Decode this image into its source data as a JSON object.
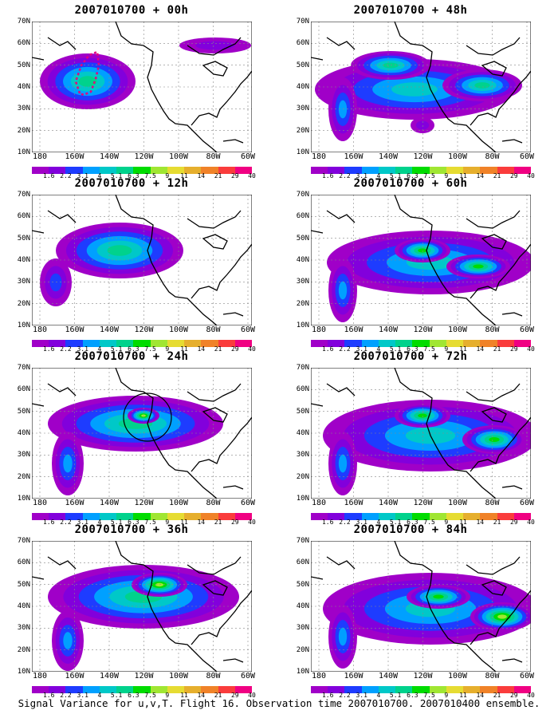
{
  "panels": [
    {
      "title": "2007010700 + 00h",
      "lobes": [
        {
          "cx": 70,
          "cy": 75,
          "rx": 60,
          "ry": 35,
          "l": 5
        },
        {
          "cx": 230,
          "cy": 30,
          "rx": 45,
          "ry": 10,
          "l": 1
        }
      ],
      "path": true
    },
    {
      "title": "2007010700 + 48h",
      "lobes": [
        {
          "cx": 130,
          "cy": 85,
          "rx": 125,
          "ry": 38,
          "l": 4
        },
        {
          "cx": 40,
          "cy": 110,
          "rx": 18,
          "ry": 40,
          "l": 3
        },
        {
          "cx": 215,
          "cy": 80,
          "rx": 50,
          "ry": 20,
          "l": 5
        },
        {
          "cx": 100,
          "cy": 55,
          "rx": 50,
          "ry": 18,
          "l": 5
        },
        {
          "cx": 140,
          "cy": 130,
          "rx": 15,
          "ry": 10,
          "l": 1
        }
      ]
    },
    {
      "title": "2007010700 + 12h",
      "lobes": [
        {
          "cx": 110,
          "cy": 70,
          "rx": 80,
          "ry": 35,
          "l": 5
        },
        {
          "cx": 30,
          "cy": 110,
          "rx": 20,
          "ry": 30,
          "l": 2
        }
      ]
    },
    {
      "title": "2007010700 + 60h",
      "lobes": [
        {
          "cx": 150,
          "cy": 85,
          "rx": 130,
          "ry": 40,
          "l": 4
        },
        {
          "cx": 40,
          "cy": 120,
          "rx": 18,
          "ry": 40,
          "l": 3
        },
        {
          "cx": 140,
          "cy": 70,
          "rx": 35,
          "ry": 15,
          "l": 6
        },
        {
          "cx": 210,
          "cy": 90,
          "rx": 40,
          "ry": 15,
          "l": 6
        }
      ]
    },
    {
      "title": "2007010700 + 24h",
      "lobes": [
        {
          "cx": 130,
          "cy": 70,
          "rx": 110,
          "ry": 35,
          "l": 5
        },
        {
          "cx": 45,
          "cy": 120,
          "rx": 20,
          "ry": 40,
          "l": 3
        },
        {
          "cx": 140,
          "cy": 60,
          "rx": 20,
          "ry": 10,
          "l": 7
        }
      ],
      "circle": true
    },
    {
      "title": "2007010700 + 72h",
      "lobes": [
        {
          "cx": 150,
          "cy": 85,
          "rx": 135,
          "ry": 45,
          "l": 4
        },
        {
          "cx": 40,
          "cy": 120,
          "rx": 18,
          "ry": 40,
          "l": 3
        },
        {
          "cx": 230,
          "cy": 90,
          "rx": 40,
          "ry": 18,
          "l": 6
        },
        {
          "cx": 140,
          "cy": 60,
          "rx": 35,
          "ry": 15,
          "l": 6
        }
      ]
    },
    {
      "title": "2007010700 + 36h",
      "lobes": [
        {
          "cx": 140,
          "cy": 70,
          "rx": 120,
          "ry": 40,
          "l": 5
        },
        {
          "cx": 45,
          "cy": 125,
          "rx": 20,
          "ry": 38,
          "l": 3
        },
        {
          "cx": 160,
          "cy": 55,
          "rx": 35,
          "ry": 15,
          "l": 7
        }
      ]
    },
    {
      "title": "2007010700 + 84h",
      "lobes": [
        {
          "cx": 150,
          "cy": 85,
          "rx": 135,
          "ry": 45,
          "l": 4
        },
        {
          "cx": 40,
          "cy": 120,
          "rx": 18,
          "ry": 40,
          "l": 3
        },
        {
          "cx": 240,
          "cy": 95,
          "rx": 40,
          "ry": 18,
          "l": 7
        },
        {
          "cx": 160,
          "cy": 70,
          "rx": 40,
          "ry": 15,
          "l": 6
        }
      ]
    }
  ],
  "lat_labels": [
    "70N",
    "60N",
    "50N",
    "40N",
    "30N",
    "20N",
    "10N"
  ],
  "lon_labels": [
    "180",
    "160W",
    "140W",
    "120W",
    "100W",
    "80W",
    "60W"
  ],
  "colorbar": {
    "colors": [
      "#a000c8",
      "#8200dc",
      "#1e3cff",
      "#00a0ff",
      "#00c8c8",
      "#00d28c",
      "#00dc00",
      "#a0e632",
      "#e6dc32",
      "#e6af2d",
      "#f08228",
      "#fa3c3c",
      "#f00082"
    ],
    "labels": [
      "1.6",
      "2.2",
      "3.1",
      "4",
      "5.1",
      "6.3",
      "7.5",
      "9",
      "11",
      "14",
      "21",
      "29",
      "40"
    ]
  },
  "caption": "Signal Variance for u,v,T. Flight 16. Observation time 2007010700. 2007010400 ensemble."
}
